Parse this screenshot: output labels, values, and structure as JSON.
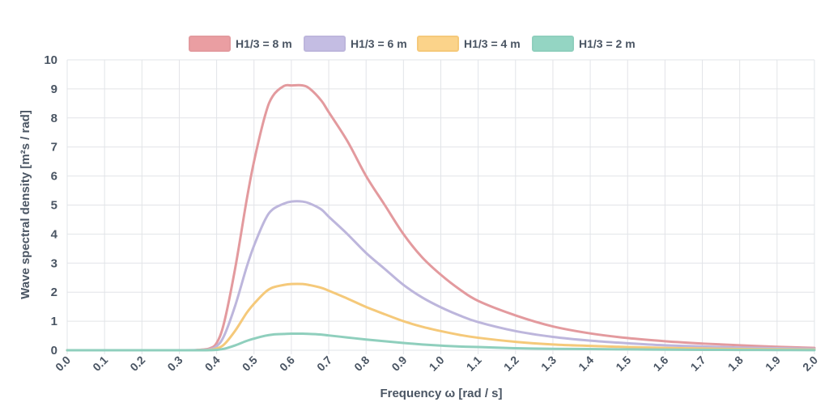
{
  "chart_data": {
    "type": "line",
    "xlabel": "Frequency ω [rad / s]",
    "ylabel": "Wave spectral density [m²s / rad]",
    "xlim": [
      0,
      2
    ],
    "ylim": [
      0,
      10
    ],
    "x_ticks": [
      "0.0",
      "0.1",
      "0.2",
      "0.3",
      "0.4",
      "0.5",
      "0.6",
      "0.7",
      "0.8",
      "0.9",
      "1.0",
      "1.1",
      "1.2",
      "1.3",
      "1.4",
      "1.5",
      "1.6",
      "1.7",
      "1.8",
      "1.9",
      "2.0"
    ],
    "y_ticks": [
      "0",
      "1",
      "2",
      "3",
      "4",
      "5",
      "6",
      "7",
      "8",
      "9",
      "10"
    ],
    "grid": true,
    "legend_position": "top-center",
    "x": [
      0.0,
      0.3,
      0.35,
      0.38,
      0.4,
      0.42,
      0.45,
      0.48,
      0.5,
      0.53,
      0.55,
      0.58,
      0.6,
      0.63,
      0.65,
      0.68,
      0.7,
      0.75,
      0.8,
      0.85,
      0.9,
      0.95,
      1.0,
      1.05,
      1.1,
      1.2,
      1.3,
      1.4,
      1.5,
      1.6,
      1.7,
      1.8,
      1.9,
      2.0
    ],
    "series": [
      {
        "name": "H1/3 = 8 m",
        "color": "#e39a9e",
        "fill": "#ea9ea2",
        "values": [
          0,
          0,
          0.01,
          0.06,
          0.25,
          0.95,
          2.85,
          5.15,
          6.5,
          8.1,
          8.75,
          9.1,
          9.12,
          9.12,
          9.0,
          8.6,
          8.2,
          7.2,
          6.0,
          5.0,
          4.0,
          3.2,
          2.6,
          2.1,
          1.7,
          1.2,
          0.82,
          0.58,
          0.42,
          0.31,
          0.23,
          0.17,
          0.12,
          0.08
        ]
      },
      {
        "name": "H1/3 = 6 m",
        "color": "#bdb6dc",
        "fill": "#c4bde3",
        "values": [
          0,
          0,
          0.005,
          0.03,
          0.14,
          0.5,
          1.55,
          2.85,
          3.6,
          4.5,
          4.85,
          5.05,
          5.12,
          5.12,
          5.05,
          4.85,
          4.6,
          4.0,
          3.35,
          2.8,
          2.25,
          1.82,
          1.48,
          1.2,
          0.97,
          0.66,
          0.46,
          0.33,
          0.24,
          0.17,
          0.13,
          0.09,
          0.07,
          0.05
        ]
      },
      {
        "name": "H1/3 = 4 m",
        "color": "#f5c97a",
        "fill": "#fbd38a",
        "values": [
          0,
          0,
          0.002,
          0.01,
          0.06,
          0.2,
          0.68,
          1.28,
          1.6,
          2.0,
          2.16,
          2.25,
          2.28,
          2.28,
          2.24,
          2.15,
          2.05,
          1.78,
          1.49,
          1.24,
          1.0,
          0.81,
          0.66,
          0.53,
          0.43,
          0.29,
          0.2,
          0.15,
          0.11,
          0.08,
          0.06,
          0.04,
          0.03,
          0.02
        ]
      },
      {
        "name": "H1/3 = 2 m",
        "color": "#8fcfbd",
        "fill": "#94d5c3",
        "values": [
          0,
          0,
          0,
          0.003,
          0.015,
          0.05,
          0.17,
          0.32,
          0.4,
          0.5,
          0.54,
          0.56,
          0.57,
          0.57,
          0.56,
          0.54,
          0.51,
          0.44,
          0.37,
          0.31,
          0.25,
          0.2,
          0.16,
          0.13,
          0.11,
          0.07,
          0.05,
          0.04,
          0.03,
          0.02,
          0.015,
          0.01,
          0.008,
          0.005
        ]
      }
    ]
  }
}
